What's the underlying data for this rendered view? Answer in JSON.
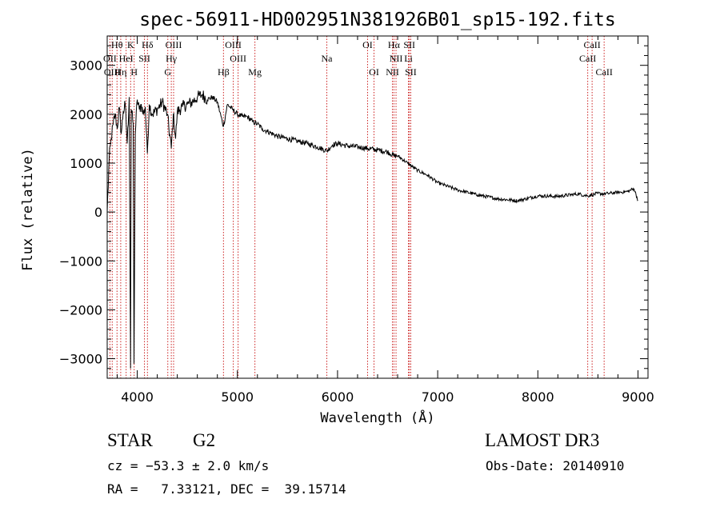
{
  "chart_data": {
    "type": "line",
    "title": "spec-56911-HD002951N381926B01_sp15-192.fits",
    "xlabel": "Wavelength (Å)",
    "ylabel": "Flux (relative)",
    "xlim": [
      3700,
      9100
    ],
    "ylim": [
      -3400,
      3600
    ],
    "x_ticks": [
      4000,
      5000,
      6000,
      7000,
      8000,
      9000
    ],
    "y_ticks": [
      -3000,
      -2000,
      -1000,
      0,
      1000,
      2000,
      3000
    ],
    "x_tick_labels": [
      "4000",
      "5000",
      "6000",
      "7000",
      "8000",
      "9000"
    ],
    "y_tick_labels": [
      "−3000",
      "−2000",
      "−1000",
      "0",
      "1000",
      "2000",
      "3000"
    ],
    "grid": false,
    "series": [
      {
        "name": "spectrum",
        "color": "#000000",
        "x": [
          3700,
          3720,
          3740,
          3760,
          3780,
          3800,
          3820,
          3840,
          3860,
          3880,
          3900,
          3920,
          3933,
          3940,
          3960,
          3968,
          3980,
          4000,
          4020,
          4040,
          4060,
          4080,
          4101,
          4120,
          4150,
          4200,
          4250,
          4300,
          4340,
          4360,
          4383,
          4400,
          4450,
          4500,
          4550,
          4600,
          4650,
          4700,
          4750,
          4800,
          4861,
          4900,
          4950,
          5000,
          5050,
          5100,
          5150,
          5200,
          5250,
          5300,
          5400,
          5500,
          5600,
          5700,
          5800,
          5893,
          5950,
          6000,
          6100,
          6200,
          6300,
          6400,
          6500,
          6563,
          6600,
          6700,
          6800,
          6900,
          7000,
          7200,
          7400,
          7600,
          7800,
          8000,
          8200,
          8400,
          8498,
          8542,
          8600,
          8662,
          8700,
          8800,
          8900,
          8960,
          9000
        ],
        "y": [
          0,
          1100,
          1500,
          1800,
          2000,
          1700,
          2150,
          1600,
          2050,
          2200,
          1400,
          2350,
          -3200,
          2100,
          1800,
          -3100,
          1600,
          2300,
          2100,
          2200,
          2000,
          2150,
          1200,
          2200,
          2000,
          2100,
          2250,
          2000,
          1300,
          2000,
          1500,
          2050,
          2150,
          2200,
          2250,
          2350,
          2400,
          2300,
          2350,
          2250,
          1750,
          2200,
          2100,
          2000,
          1950,
          1950,
          1850,
          1800,
          1700,
          1650,
          1550,
          1500,
          1450,
          1400,
          1330,
          1250,
          1370,
          1400,
          1350,
          1330,
          1300,
          1270,
          1230,
          1150,
          1150,
          1000,
          850,
          750,
          600,
          450,
          350,
          270,
          230,
          330,
          320,
          370,
          330,
          350,
          380,
          370,
          380,
          400,
          420,
          480,
          240
        ]
      }
    ],
    "lines": [
      {
        "label": "Hθ",
        "x": 3798,
        "row": 0
      },
      {
        "label": "K",
        "x": 3934,
        "row": 0
      },
      {
        "label": "Hδ",
        "x": 4102,
        "row": 0
      },
      {
        "label": "OIII",
        "x": 4363,
        "row": 0
      },
      {
        "label": "OIII",
        "x": 4959,
        "row": 0
      },
      {
        "label": "OI",
        "x": 6300,
        "row": 0
      },
      {
        "label": "Hα",
        "x": 6563,
        "row": 0
      },
      {
        "label": "SII",
        "x": 6717,
        "row": 0
      },
      {
        "label": "CaII",
        "x": 8542,
        "row": 0
      },
      {
        "label": "OII",
        "x": 3727,
        "row": 1
      },
      {
        "label": "HeI",
        "x": 3889,
        "row": 1
      },
      {
        "label": "SII",
        "x": 4072,
        "row": 1
      },
      {
        "label": "Hγ",
        "x": 4340,
        "row": 1
      },
      {
        "label": "OIII",
        "x": 5007,
        "row": 1
      },
      {
        "label": "Na",
        "x": 5893,
        "row": 1
      },
      {
        "label": "NII",
        "x": 6584,
        "row": 1
      },
      {
        "label": "Li",
        "x": 6708,
        "row": 1
      },
      {
        "label": "CaII",
        "x": 8498,
        "row": 1
      },
      {
        "label": "OIII",
        "x": 3750,
        "row": 2
      },
      {
        "label": "Hη",
        "x": 3835,
        "row": 2
      },
      {
        "label": "H",
        "x": 3969,
        "row": 2
      },
      {
        "label": "G",
        "x": 4305,
        "row": 2
      },
      {
        "label": "Hβ",
        "x": 4861,
        "row": 2
      },
      {
        "label": "Mg",
        "x": 5175,
        "row": 2
      },
      {
        "label": "OI",
        "x": 6364,
        "row": 2
      },
      {
        "label": "NII",
        "x": 6548,
        "row": 2
      },
      {
        "label": "SII",
        "x": 6731,
        "row": 2
      },
      {
        "label": "CaII",
        "x": 8662,
        "row": 2
      }
    ]
  },
  "info": {
    "object_type": "STAR",
    "subclass": "G2",
    "survey": "LAMOST DR3",
    "cz": "cz = −53.3 ± 2.0 km/s",
    "obs_date": "Obs-Date: 20140910",
    "coords": "RA =   7.33121, DEC =  39.15714"
  },
  "colors": {
    "line_marker": "#cc2222",
    "spectrum": "#000000",
    "axis": "#000000"
  }
}
